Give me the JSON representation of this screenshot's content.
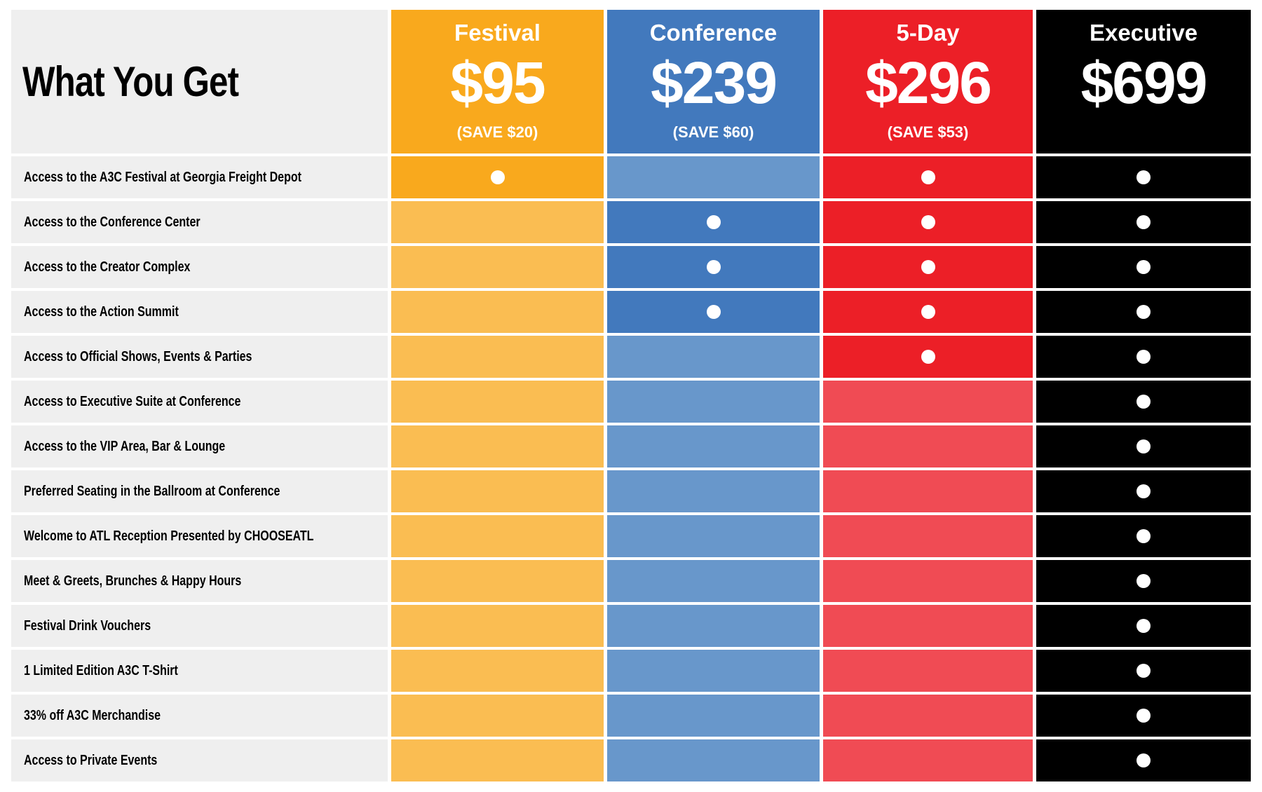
{
  "table": {
    "corner_title": "What You Get",
    "included_marker": "dot",
    "marker_color": "#FFFFFF",
    "label_column_bg": "#EFEFEF",
    "page_bg": "#FFFFFF",
    "plans": [
      {
        "name": "Festival",
        "price": "$95",
        "save": "(SAVE $20)",
        "color": "#F9A91D",
        "light": "#FABD52",
        "text_color": "#FFFFFF"
      },
      {
        "name": "Conference",
        "price": "$239",
        "save": "(SAVE $60)",
        "color": "#4279BD",
        "light": "#6897CB",
        "text_color": "#FFFFFF"
      },
      {
        "name": "5-Day",
        "price": "$296",
        "save": "(SAVE $53)",
        "color": "#EC1F27",
        "light": "#F04B54",
        "text_color": "#FFFFFF"
      },
      {
        "name": "Executive",
        "price": "$699",
        "save": "",
        "color": "#000000",
        "light": "#000000",
        "text_color": "#FFFFFF"
      }
    ],
    "features": [
      {
        "label": "Access to the A3C Festival at Georgia Freight Depot",
        "included": [
          true,
          false,
          true,
          true
        ]
      },
      {
        "label": "Access to the Conference Center",
        "included": [
          false,
          true,
          true,
          true
        ]
      },
      {
        "label": "Access to the Creator Complex",
        "included": [
          false,
          true,
          true,
          true
        ]
      },
      {
        "label": "Access to the Action Summit",
        "included": [
          false,
          true,
          true,
          true
        ]
      },
      {
        "label": "Access to Official Shows, Events & Parties",
        "included": [
          false,
          false,
          true,
          true
        ]
      },
      {
        "label": "Access to Executive Suite at Conference",
        "included": [
          false,
          false,
          false,
          true
        ]
      },
      {
        "label": "Access to the VIP Area, Bar & Lounge",
        "included": [
          false,
          false,
          false,
          true
        ]
      },
      {
        "label": "Preferred Seating in the Ballroom at Conference",
        "included": [
          false,
          false,
          false,
          true
        ]
      },
      {
        "label": "Welcome to ATL Reception Presented by CHOOSEATL",
        "included": [
          false,
          false,
          false,
          true
        ]
      },
      {
        "label": "Meet & Greets, Brunches & Happy Hours",
        "included": [
          false,
          false,
          false,
          true
        ]
      },
      {
        "label": "Festival Drink Vouchers",
        "included": [
          false,
          false,
          false,
          true
        ]
      },
      {
        "label": "1 Limited Edition A3C T-Shirt",
        "included": [
          false,
          false,
          false,
          true
        ]
      },
      {
        "label": "33% off A3C Merchandise",
        "included": [
          false,
          false,
          false,
          true
        ]
      },
      {
        "label": "Access to Private Events",
        "included": [
          false,
          false,
          false,
          true
        ]
      }
    ]
  },
  "chart_data": {
    "type": "table",
    "title": "What You Get",
    "columns": [
      "What You Get",
      "Festival $95 (SAVE $20)",
      "Conference $239 (SAVE $60)",
      "5-Day $296 (SAVE $53)",
      "Executive $699"
    ],
    "rows": [
      [
        "Access to the A3C Festival at Georgia Freight Depot",
        "yes",
        "no",
        "yes",
        "yes"
      ],
      [
        "Access to the Conference Center",
        "no",
        "yes",
        "yes",
        "yes"
      ],
      [
        "Access to the Creator Complex",
        "no",
        "yes",
        "yes",
        "yes"
      ],
      [
        "Access to the Action Summit",
        "no",
        "yes",
        "yes",
        "yes"
      ],
      [
        "Access to Official Shows, Events & Parties",
        "no",
        "no",
        "yes",
        "yes"
      ],
      [
        "Access to Executive Suite at Conference",
        "no",
        "no",
        "no",
        "yes"
      ],
      [
        "Access to the VIP Area, Bar & Lounge",
        "no",
        "no",
        "no",
        "yes"
      ],
      [
        "Preferred Seating in the Ballroom at Conference",
        "no",
        "no",
        "no",
        "yes"
      ],
      [
        "Welcome to ATL Reception Presented by CHOOSEATL",
        "no",
        "no",
        "no",
        "yes"
      ],
      [
        "Meet & Greets, Brunches & Happy Hours",
        "no",
        "no",
        "no",
        "yes"
      ],
      [
        "Festival Drink Vouchers",
        "no",
        "no",
        "no",
        "yes"
      ],
      [
        "1 Limited Edition A3C T-Shirt",
        "no",
        "no",
        "no",
        "yes"
      ],
      [
        "33% off A3C Merchandise",
        "no",
        "no",
        "no",
        "yes"
      ],
      [
        "Access to Private Events",
        "no",
        "no",
        "no",
        "yes"
      ]
    ]
  }
}
